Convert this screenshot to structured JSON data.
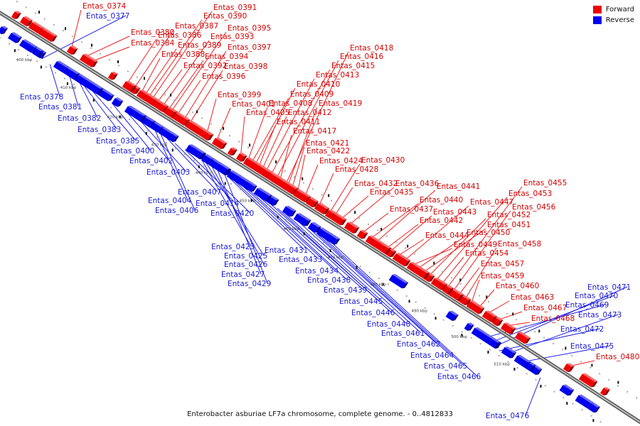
{
  "caption": "Enterobacter asburiae LF7a chromosome, complete genome. - 0..4812833",
  "legend": [
    {
      "label": "Forward",
      "color": "#ee0000"
    },
    {
      "label": "Reverse",
      "color": "#0000ee"
    }
  ],
  "kbp_labels": [
    "400 kbp",
    "410 kbp",
    "420 kbp",
    "430 kbp",
    "440 kbp",
    "450 kbp",
    "460 kbp",
    "470 kbp",
    "480 kbp",
    "490 kbp",
    "500 kbp",
    "510 kbp"
  ],
  "forward_labels": [
    "Entas_0374",
    "Entas_0380",
    "Entas_0384",
    "Entas_0386",
    "Entas_0387",
    "Entas_0388",
    "Entas_0389",
    "Entas_0390",
    "Entas_0391",
    "Entas_0392",
    "Entas_0393",
    "Entas_0394",
    "Entas_0395",
    "Entas_0396",
    "Entas_0397",
    "Entas_0398",
    "Entas_0399",
    "Entas_0401",
    "Entas_0405",
    "Entas_0408",
    "Entas_0409",
    "Entas_0410",
    "Entas_0411",
    "Entas_0412",
    "Entas_0413",
    "Entas_0415",
    "Entas_0416",
    "Entas_0417",
    "Entas_0418",
    "Entas_0419",
    "Entas_0421",
    "Entas_0422",
    "Entas_0424",
    "Entas_0428",
    "Entas_0430",
    "Entas_0432",
    "Entas_0435",
    "Entas_0436",
    "Entas_0437",
    "Entas_0440",
    "Entas_0441",
    "Entas_0442",
    "Entas_0443",
    "Entas_0444",
    "Entas_0447",
    "Entas_0449",
    "Entas_0450",
    "Entas_0451",
    "Entas_0452",
    "Entas_0453",
    "Entas_0454",
    "Entas_0455",
    "Entas_0456",
    "Entas_0457",
    "Entas_0458",
    "Entas_0459",
    "Entas_0460",
    "Entas_0463",
    "Entas_0467",
    "Entas_0468",
    "Entas_0480"
  ],
  "reverse_labels": [
    "Entas_0377",
    "Entas_0378",
    "Entas_0381",
    "Entas_0382",
    "Entas_0383",
    "Entas_0385",
    "Entas_0400",
    "Entas_0402",
    "Entas_0403",
    "Entas_0404",
    "Entas_0406",
    "Entas_0407",
    "Entas_0414",
    "Entas_0420",
    "Entas_0423",
    "Entas_0425",
    "Entas_0426",
    "Entas_0427",
    "Entas_0429",
    "Entas_0431",
    "Entas_0433",
    "Entas_0434",
    "Entas_0438",
    "Entas_0439",
    "Entas_0445",
    "Entas_0446",
    "Entas_0448",
    "Entas_0461",
    "Entas_0462",
    "Entas_0464",
    "Entas_0465",
    "Entas_0466",
    "Entas_0469",
    "Entas_0470",
    "Entas_0471",
    "Entas_0472",
    "Entas_0473",
    "Entas_0475",
    "Entas_0476"
  ]
}
